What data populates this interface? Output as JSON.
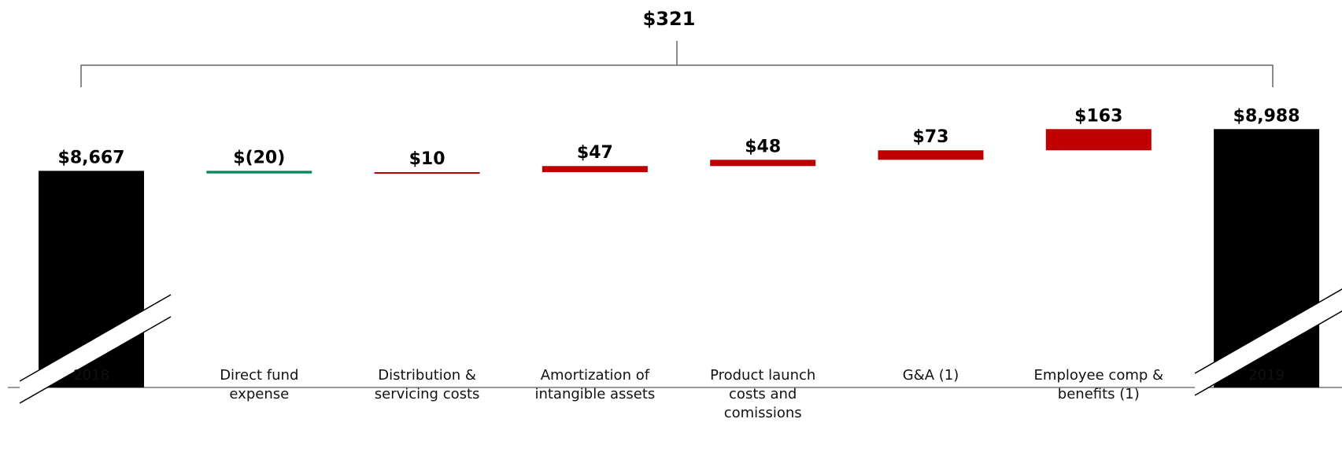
{
  "chart_data": {
    "type": "waterfall",
    "annotation": "$321",
    "categories": [
      "2018",
      "Direct fund expense",
      "Distribution & servicing costs",
      "Amortization of intangible assets",
      "Product launch costs and comissions",
      "G&A (1)",
      "Employee comp & benefits (1)",
      "2019"
    ],
    "values": [
      8667,
      -20,
      10,
      47,
      48,
      73,
      163,
      8988
    ],
    "value_labels": [
      "$8,667",
      "$(20)",
      "$10",
      "$47",
      "$48",
      "$73",
      "$163",
      "$8,988"
    ],
    "kinds": [
      "total",
      "delta",
      "delta",
      "delta",
      "delta",
      "delta",
      "delta",
      "total"
    ],
    "colors": {
      "total": "#000000",
      "decrease": "#00875a",
      "increase": "#c00000"
    },
    "ylim": [
      8500,
      9050
    ],
    "axis_break": true
  }
}
